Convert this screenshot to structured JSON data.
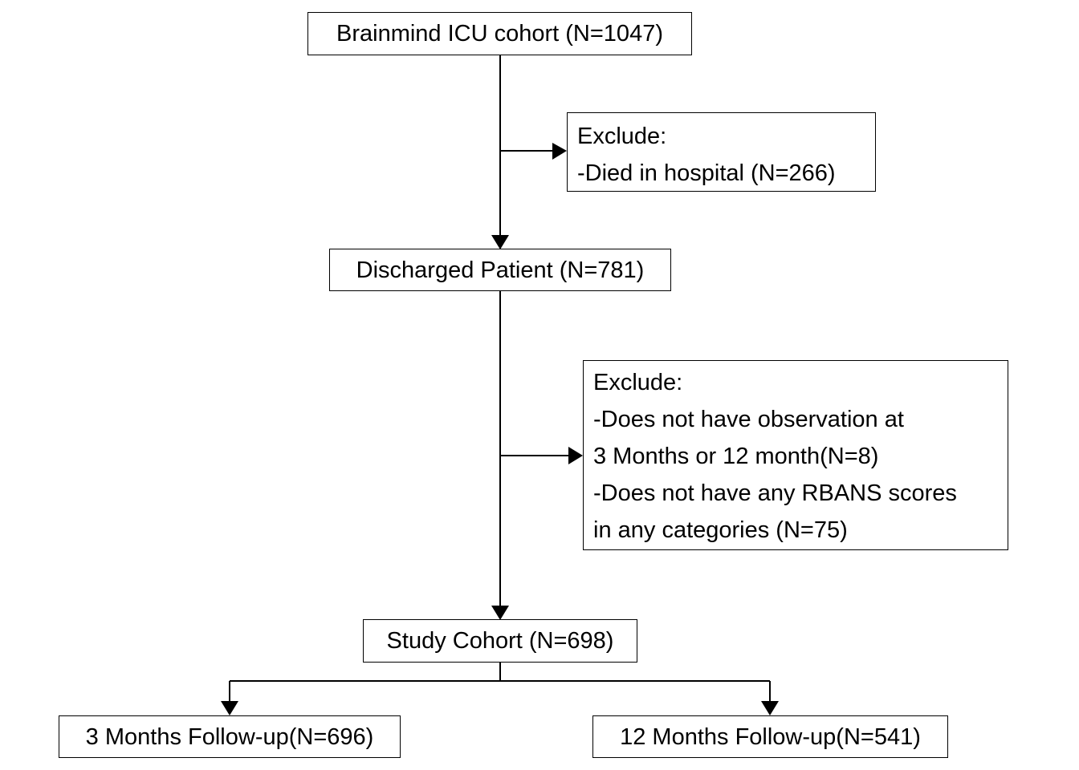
{
  "diagram": {
    "nodes": {
      "cohort": {
        "label": "Brainmind ICU cohort (N=1047)"
      },
      "exclusion_1": {
        "lines": [
          "Exclude:",
          "-Died in hospital (N=266)"
        ]
      },
      "discharged": {
        "label": "Discharged Patient (N=781)"
      },
      "exclusion_2": {
        "lines": [
          "Exclude:",
          "-Does not have observation at",
          "3 Months or 12 month(N=8)",
          "-Does not have any RBANS scores",
          "in any categories (N=75)"
        ]
      },
      "study_cohort": {
        "label": "Study Cohort (N=698)"
      },
      "followup_3m": {
        "label": "3 Months Follow-up(N=696)"
      },
      "followup_12m": {
        "label": "12 Months Follow-up(N=541)"
      }
    },
    "edges": [
      {
        "from": "cohort",
        "to": "discharged"
      },
      {
        "from": "cohort",
        "to": "exclusion_1"
      },
      {
        "from": "discharged",
        "to": "study_cohort"
      },
      {
        "from": "discharged",
        "to": "exclusion_2"
      },
      {
        "from": "study_cohort",
        "to": "followup_3m"
      },
      {
        "from": "study_cohort",
        "to": "followup_12m"
      }
    ],
    "colors": {
      "line": "#000000",
      "box_border": "#000000",
      "background": "#ffffff"
    }
  }
}
